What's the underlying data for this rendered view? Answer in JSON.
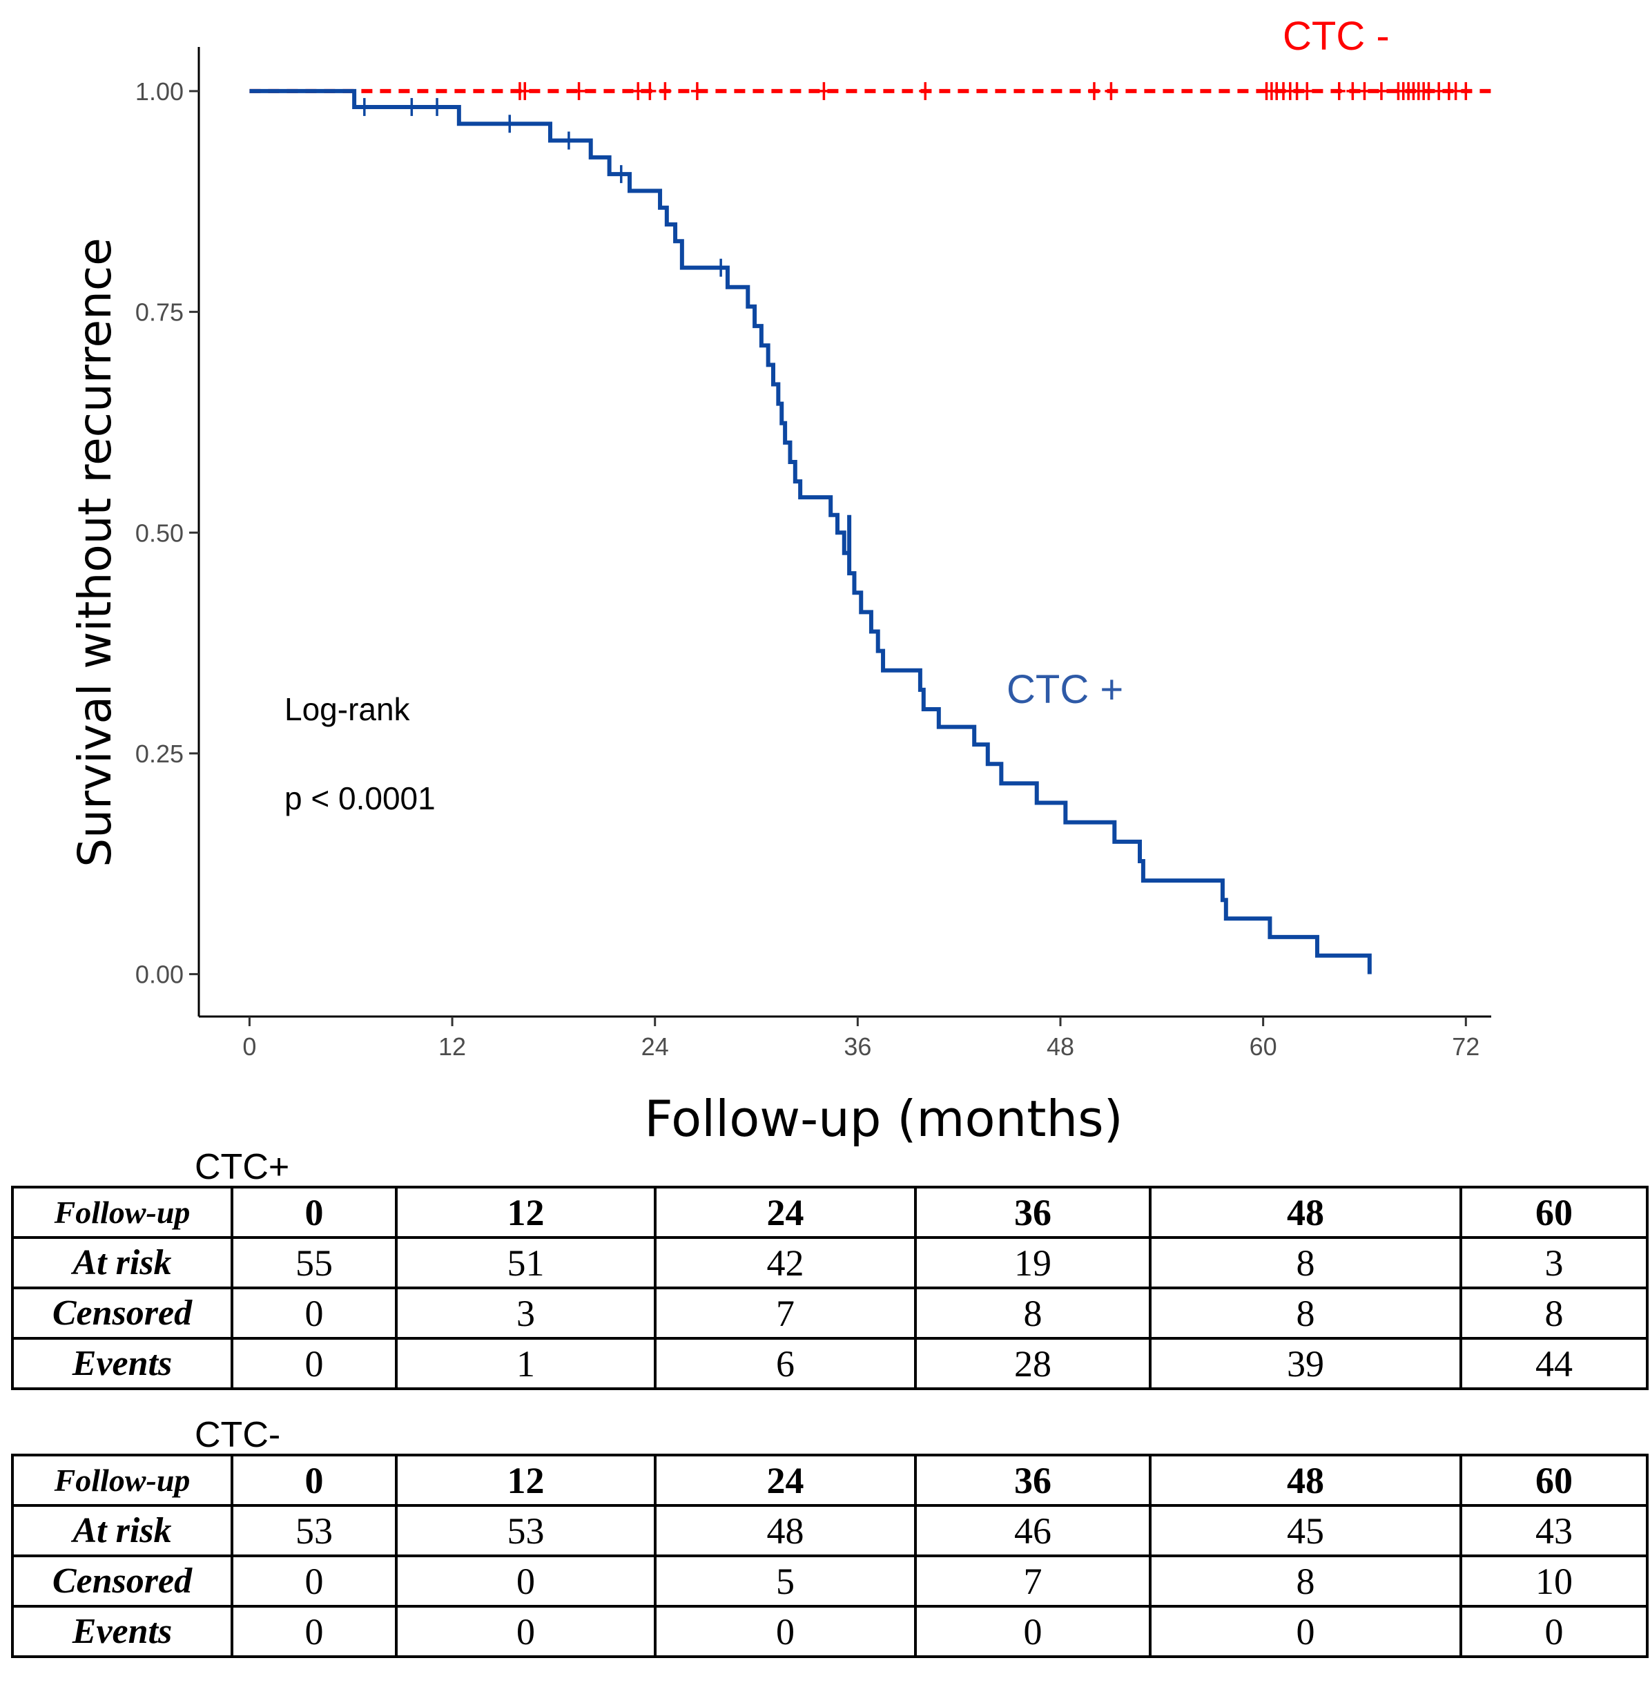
{
  "chart_data": {
    "type": "line",
    "subtype": "kaplan-meier",
    "title": "",
    "xlabel": "Follow-up (months)",
    "ylabel": "Survival without recurrence",
    "xlim": [
      -3,
      73.5
    ],
    "ylim": [
      -0.048,
      1.05
    ],
    "x_ticks": [
      0,
      12,
      24,
      36,
      48,
      60,
      72
    ],
    "x_tick_labels": [
      "0",
      "12",
      "24",
      "36",
      "48",
      "60",
      "72"
    ],
    "y_ticks": [
      0,
      0.25,
      0.5,
      0.75,
      1
    ],
    "y_tick_labels": [
      "0.00",
      "0.25",
      "0.50",
      "0.75",
      "1.00"
    ],
    "grid": false,
    "annotations": {
      "test": "Log-rank",
      "pvalue": "p < 0.0001"
    },
    "series": [
      {
        "name": "CTC -",
        "color": "#ff0000",
        "dash": true,
        "steps": [
          [
            0,
            1.0
          ],
          [
            73.5,
            1.0
          ]
        ],
        "censor": [
          16,
          16.3,
          19.5,
          23,
          23.7,
          24.6,
          26.5,
          34,
          40,
          50,
          51,
          60.2,
          60.5,
          60.8,
          61.2,
          61.6,
          62,
          62.6,
          64.5,
          65.3,
          66,
          67,
          68,
          68.3,
          68.6,
          68.9,
          69.2,
          69.5,
          69.8,
          70.4,
          71,
          71.4,
          72
        ]
      },
      {
        "name": "CTC +",
        "color": "#0d47a1",
        "dash": false,
        "steps": [
          [
            0,
            1.0
          ],
          [
            6.2,
            0.982
          ],
          [
            12.4,
            0.963
          ],
          [
            17.8,
            0.944
          ],
          [
            20.2,
            0.925
          ],
          [
            21.3,
            0.906
          ],
          [
            22.5,
            0.887
          ],
          [
            24.3,
            0.868
          ],
          [
            24.7,
            0.849
          ],
          [
            25.2,
            0.83
          ],
          [
            25.6,
            0.8
          ],
          [
            28.3,
            0.778
          ],
          [
            29.5,
            0.756
          ],
          [
            29.9,
            0.734
          ],
          [
            30.3,
            0.712
          ],
          [
            30.7,
            0.69
          ],
          [
            31,
            0.668
          ],
          [
            31.3,
            0.646
          ],
          [
            31.5,
            0.624
          ],
          [
            31.7,
            0.602
          ],
          [
            32,
            0.58
          ],
          [
            32.3,
            0.558
          ],
          [
            32.6,
            0.54
          ],
          [
            33.9,
            0.54
          ],
          [
            35.5,
            0.52
          ],
          [
            34.4,
            0.52
          ],
          [
            34.8,
            0.5
          ],
          [
            35.2,
            0.477
          ],
          [
            35.5,
            0.454
          ],
          [
            35.8,
            0.432
          ],
          [
            36.2,
            0.41
          ],
          [
            36.8,
            0.388
          ],
          [
            37.2,
            0.366
          ],
          [
            37.5,
            0.344
          ],
          [
            39.7,
            0.322
          ],
          [
            39.9,
            0.3
          ],
          [
            40.8,
            0.28
          ],
          [
            42.9,
            0.26
          ],
          [
            43.7,
            0.238
          ],
          [
            44.5,
            0.216
          ],
          [
            46.6,
            0.194
          ],
          [
            48.3,
            0.172
          ],
          [
            51.2,
            0.15
          ],
          [
            52.7,
            0.128
          ],
          [
            52.9,
            0.106
          ],
          [
            57.6,
            0.084
          ],
          [
            57.8,
            0.063
          ],
          [
            60.4,
            0.042
          ],
          [
            63.2,
            0.021
          ],
          [
            66.3,
            0.0
          ]
        ],
        "censor": [
          [
            6.8,
            0.982
          ],
          [
            9.6,
            0.982
          ],
          [
            11.1,
            0.982
          ],
          [
            15.4,
            0.963
          ],
          [
            18.9,
            0.944
          ],
          [
            22.0,
            0.906
          ],
          [
            27.9,
            0.8
          ]
        ]
      }
    ]
  },
  "tables": [
    {
      "title": "CTC+",
      "header": [
        "Follow-up",
        "0",
        "12",
        "24",
        "36",
        "48",
        "60"
      ],
      "rows": [
        [
          "At risk",
          "55",
          "51",
          "42",
          "19",
          "8",
          "3"
        ],
        [
          "Censored",
          "0",
          "3",
          "7",
          "8",
          "8",
          "8"
        ],
        [
          "Events",
          "0",
          "1",
          "6",
          "28",
          "39",
          "44"
        ]
      ]
    },
    {
      "title": "CTC-",
      "header": [
        "Follow-up",
        "0",
        "12",
        "24",
        "36",
        "48",
        "60"
      ],
      "rows": [
        [
          "At risk",
          "53",
          "53",
          "48",
          "46",
          "45",
          "43"
        ],
        [
          "Censored",
          "0",
          "0",
          "5",
          "7",
          "8",
          "10"
        ],
        [
          "Events",
          "0",
          "0",
          "0",
          "0",
          "0",
          "0"
        ]
      ]
    }
  ]
}
